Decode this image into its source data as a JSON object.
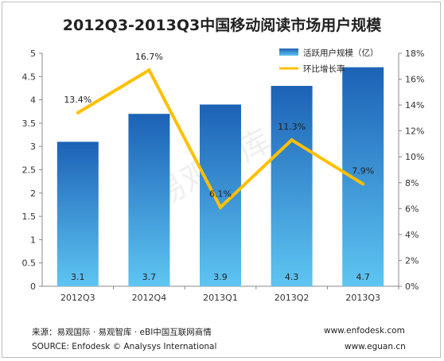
{
  "title": "2012Q3-2013Q3中国移动阅读市场用户规模",
  "watermark": "易观智库",
  "chart_data": {
    "type": "bar",
    "categories": [
      "2012Q3",
      "2012Q4",
      "2013Q1",
      "2013Q2",
      "2013Q3"
    ],
    "series": [
      {
        "name": "活跃用户规模（亿）",
        "type": "bar",
        "axis": "left",
        "values": [
          3.1,
          3.7,
          3.9,
          4.3,
          4.7
        ],
        "labels": [
          "3.1",
          "3.7",
          "3.9",
          "4.3",
          "4.7"
        ],
        "color": "#2a79c9"
      },
      {
        "name": "环比增长率",
        "type": "line",
        "axis": "right",
        "values": [
          13.4,
          16.7,
          6.1,
          11.3,
          7.9
        ],
        "labels": [
          "13.4%",
          "16.7%",
          "6.1%",
          "11.3%",
          "7.9%"
        ],
        "color": "#ffc000"
      }
    ],
    "ylim_left": [
      0,
      5
    ],
    "yticks_left": [
      "0",
      "0.5",
      "1",
      "1.5",
      "2",
      "2.5",
      "3",
      "3.5",
      "4",
      "4.5",
      "5"
    ],
    "ylim_right": [
      0,
      18
    ],
    "yticks_right": [
      "0%",
      "2%",
      "4%",
      "6%",
      "8%",
      "10%",
      "12%",
      "14%",
      "16%",
      "18%"
    ],
    "legend": "top-right",
    "grid": false
  },
  "footer": {
    "source_cn": "来源：易观国际 · 易观智库 · eBI中国互联网商情",
    "source_en": "SOURCE: Enfodesk © Analysys International",
    "url1": "www.enfodesk.com",
    "url2": "www.eguan.cn"
  }
}
